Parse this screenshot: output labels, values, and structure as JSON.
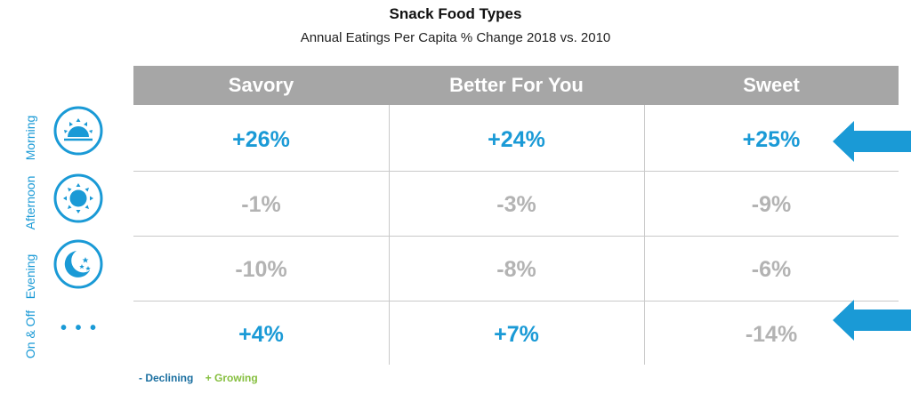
{
  "title": "Snack Food Types",
  "subtitle": "Annual Eatings Per Capita % Change 2018 vs. 2010",
  "chart_data": {
    "type": "table",
    "columns": [
      "Savory",
      "Better For You",
      "Sweet"
    ],
    "rows": [
      {
        "label": "Morning",
        "icon": "sunrise-icon",
        "values": [
          "+26%",
          "+24%",
          "+25%"
        ],
        "numeric": [
          26,
          24,
          25
        ],
        "highlighted": true
      },
      {
        "label": "Afternoon",
        "icon": "sun-icon",
        "values": [
          "-1%",
          "-3%",
          "-9%"
        ],
        "numeric": [
          -1,
          -3,
          -9
        ],
        "highlighted": false
      },
      {
        "label": "Evening",
        "icon": "moon-stars-icon",
        "values": [
          "-10%",
          "-8%",
          "-6%"
        ],
        "numeric": [
          -10,
          -8,
          -6
        ],
        "highlighted": false
      },
      {
        "label": "On & Off",
        "icon": "ellipsis-icon",
        "values": [
          "+4%",
          "+7%",
          "-14%"
        ],
        "numeric": [
          4,
          7,
          -14
        ],
        "highlighted": true
      }
    ]
  },
  "legend": {
    "declining": "- Declining",
    "growing": "+ Growing"
  },
  "colors": {
    "positive": "#1a9ad6",
    "negative": "#b3b3b3",
    "header": "#a6a6a6",
    "arrow": "#1a9ad6",
    "growing": "#86bf3f",
    "declining": "#1a6fa0"
  },
  "dots_text": "• • •"
}
